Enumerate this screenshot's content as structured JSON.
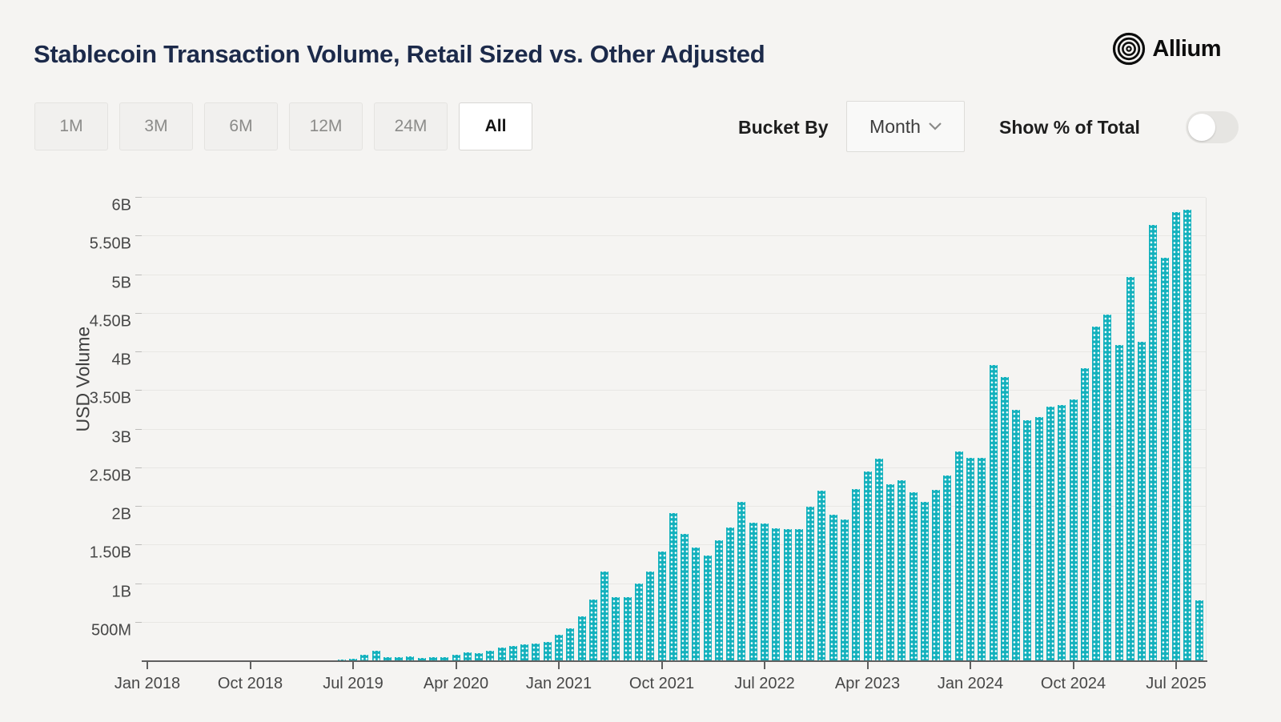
{
  "header": {
    "title": "Stablecoin Transaction Volume, Retail Sized vs. Other Adjusted",
    "brand": "Allium"
  },
  "controls": {
    "range_buttons": [
      {
        "label": "1M",
        "active": false
      },
      {
        "label": "3M",
        "active": false
      },
      {
        "label": "6M",
        "active": false
      },
      {
        "label": "12M",
        "active": false
      },
      {
        "label": "24M",
        "active": false
      },
      {
        "label": "All",
        "active": true
      }
    ],
    "bucket_by_label": "Bucket By",
    "bucket_value": "Month",
    "show_pct_label": "Show % of Total",
    "show_pct_on": false
  },
  "colors": {
    "bar": "#13b1bd",
    "page_bg": "#f5f4f2",
    "title_text": "#1c2a4a",
    "grid": "#e8e7e4",
    "axis": "#5f5f5f"
  },
  "chart_data": {
    "type": "bar",
    "title": "Stablecoin Transaction Volume, Retail Sized vs. Other Adjusted",
    "xlabel": "",
    "ylabel": "USD Volume",
    "unit": "billions USD",
    "ylim": [
      0,
      6
    ],
    "ytick_step": 0.5,
    "grid": true,
    "legend": false,
    "yticks": [
      {
        "value": 0.5,
        "label": "500M"
      },
      {
        "value": 1,
        "label": "1B"
      },
      {
        "value": 1.5,
        "label": "1.50B"
      },
      {
        "value": 2,
        "label": "2B"
      },
      {
        "value": 2.5,
        "label": "2.50B"
      },
      {
        "value": 3,
        "label": "3B"
      },
      {
        "value": 3.5,
        "label": "3.50B"
      },
      {
        "value": 4,
        "label": "4B"
      },
      {
        "value": 4.5,
        "label": "4.50B"
      },
      {
        "value": 5,
        "label": "5B"
      },
      {
        "value": 5.5,
        "label": "5.50B"
      },
      {
        "value": 6,
        "label": "6B"
      }
    ],
    "xticks": [
      {
        "label": "Jan 2018",
        "month_index": 0
      },
      {
        "label": "Oct 2018",
        "month_index": 9
      },
      {
        "label": "Jul 2019",
        "month_index": 18
      },
      {
        "label": "Apr 2020",
        "month_index": 27
      },
      {
        "label": "Jan 2021",
        "month_index": 36
      },
      {
        "label": "Oct 2021",
        "month_index": 45
      },
      {
        "label": "Jul 2022",
        "month_index": 54
      },
      {
        "label": "Apr 2023",
        "month_index": 63
      },
      {
        "label": "Jan 2024",
        "month_index": 72
      },
      {
        "label": "Oct 2024",
        "month_index": 81
      },
      {
        "label": "Jul 2025",
        "month_index": 90
      }
    ],
    "categories": [
      "Jan 2018",
      "Feb 2018",
      "Mar 2018",
      "Apr 2018",
      "May 2018",
      "Jun 2018",
      "Jul 2018",
      "Aug 2018",
      "Sep 2018",
      "Oct 2018",
      "Nov 2018",
      "Dec 2018",
      "Jan 2019",
      "Feb 2019",
      "Mar 2019",
      "Apr 2019",
      "May 2019",
      "Jun 2019",
      "Jul 2019",
      "Aug 2019",
      "Sep 2019",
      "Oct 2019",
      "Nov 2019",
      "Dec 2019",
      "Jan 2020",
      "Feb 2020",
      "Mar 2020",
      "Apr 2020",
      "May 2020",
      "Jun 2020",
      "Jul 2020",
      "Aug 2020",
      "Sep 2020",
      "Oct 2020",
      "Nov 2020",
      "Dec 2020",
      "Jan 2021",
      "Feb 2021",
      "Mar 2021",
      "Apr 2021",
      "May 2021",
      "Jun 2021",
      "Jul 2021",
      "Aug 2021",
      "Sep 2021",
      "Oct 2021",
      "Nov 2021",
      "Dec 2021",
      "Jan 2022",
      "Feb 2022",
      "Mar 2022",
      "Apr 2022",
      "May 2022",
      "Jun 2022",
      "Jul 2022",
      "Aug 2022",
      "Sep 2022",
      "Oct 2022",
      "Nov 2022",
      "Dec 2022",
      "Jan 2023",
      "Feb 2023",
      "Mar 2023",
      "Apr 2023",
      "May 2023",
      "Jun 2023",
      "Jul 2023",
      "Aug 2023",
      "Sep 2023",
      "Oct 2023",
      "Nov 2023",
      "Dec 2023",
      "Jan 2024",
      "Feb 2024",
      "Mar 2024",
      "Apr 2024",
      "May 2024",
      "Jun 2024",
      "Jul 2024",
      "Aug 2024",
      "Sep 2024",
      "Oct 2024",
      "Nov 2024",
      "Dec 2024",
      "Jan 2025",
      "Feb 2025",
      "Mar 2025",
      "Apr 2025",
      "May 2025",
      "Jun 2025",
      "Jul 2025",
      "Aug 2025",
      "Sep 2025"
    ],
    "values": [
      0.003,
      0.003,
      0.004,
      0.004,
      0.005,
      0.005,
      0.005,
      0.006,
      0.006,
      0.007,
      0.008,
      0.009,
      0.01,
      0.01,
      0.012,
      0.013,
      0.015,
      0.02,
      0.03,
      0.08,
      0.14,
      0.05,
      0.05,
      0.06,
      0.04,
      0.05,
      0.05,
      0.08,
      0.11,
      0.1,
      0.14,
      0.18,
      0.2,
      0.22,
      0.23,
      0.25,
      0.34,
      0.43,
      0.58,
      0.8,
      1.16,
      0.83,
      0.83,
      1.01,
      1.16,
      1.42,
      1.92,
      1.65,
      1.47,
      1.37,
      1.56,
      1.73,
      2.06,
      1.79,
      1.78,
      1.72,
      1.71,
      1.71,
      2.0,
      2.21,
      1.9,
      1.83,
      2.23,
      2.46,
      2.62,
      2.29,
      2.34,
      2.19,
      2.06,
      2.22,
      2.4,
      2.72,
      2.63,
      2.63,
      3.83,
      3.68,
      3.25,
      3.12,
      3.16,
      3.3,
      3.32,
      3.39,
      3.79,
      4.33,
      4.49,
      4.09,
      4.97,
      4.13,
      5.65,
      5.22,
      5.81,
      5.84,
      0.79
    ]
  }
}
